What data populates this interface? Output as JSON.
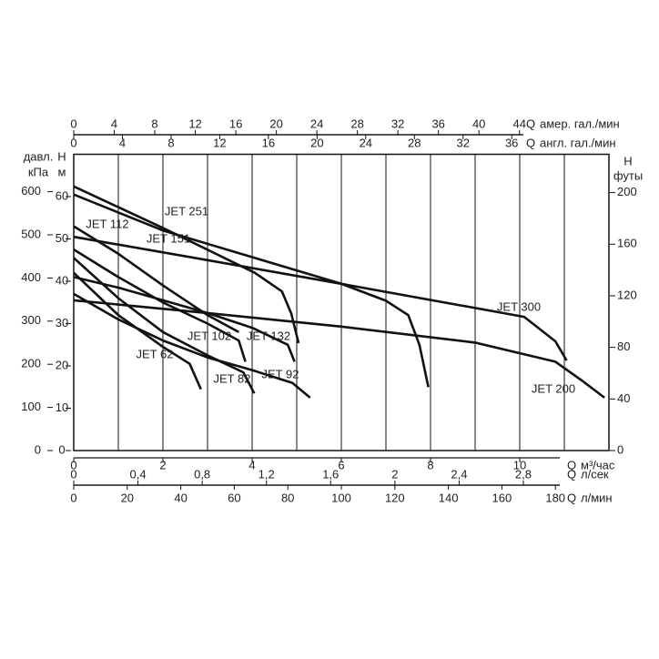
{
  "chart_data": {
    "type": "line",
    "axes": [
      {
        "side": "bottom",
        "title": "Q",
        "unit": "м³/час",
        "lim": [
          0,
          12
        ],
        "ticks": [
          0,
          2,
          4,
          6,
          8,
          10
        ]
      },
      {
        "side": "bottom",
        "title": "Q",
        "unit": "л/сек",
        "lim": [
          0,
          3.333
        ],
        "ticks": [
          0,
          {
            "value": 0.4,
            "label": "0,4"
          },
          {
            "value": 0.8,
            "label": "0,8"
          },
          {
            "value": 1.2,
            "label": "1,2"
          },
          {
            "value": 1.6,
            "label": "1,6"
          },
          2,
          {
            "value": 2.4,
            "label": "2,4"
          },
          {
            "value": 2.8,
            "label": "2,8"
          }
        ]
      },
      {
        "side": "bottom",
        "title": "Q",
        "unit": "л/мин",
        "lim": [
          0,
          200
        ],
        "ticks": [
          0,
          20,
          40,
          60,
          80,
          100,
          120,
          140,
          160,
          180
        ]
      },
      {
        "side": "top",
        "title": "Q",
        "unit": "амер. гал./мин",
        "lim": [
          0,
          52.83
        ],
        "ticks": [
          0,
          4,
          8,
          12,
          16,
          20,
          24,
          28,
          32,
          36,
          40,
          44
        ]
      },
      {
        "side": "top",
        "title": "Q",
        "unit": "англ. гал./мин",
        "lim": [
          0,
          43.99
        ],
        "ticks": [
          0,
          4,
          8,
          12,
          16,
          20,
          24,
          28,
          32,
          36
        ]
      },
      {
        "side": "left",
        "title": "H",
        "unit": "м",
        "lim": [
          0,
          70
        ],
        "ticks": [
          0,
          10,
          20,
          30,
          40,
          50,
          60
        ]
      },
      {
        "side": "left",
        "title": "давл.",
        "unit": "кПа",
        "lim": [
          0,
          686.7
        ],
        "ticks": [
          0,
          100,
          200,
          300,
          400,
          500,
          600
        ]
      },
      {
        "side": "right",
        "title": "H",
        "unit": "футы",
        "lim": [
          0,
          229.7
        ],
        "ticks": [
          0,
          40,
          80,
          120,
          160,
          200
        ]
      }
    ],
    "grid_x": [
      1,
      2,
      3,
      4,
      5,
      6,
      7,
      8,
      9,
      10,
      11
    ],
    "series": [
      {
        "name": "JET 251",
        "color": "#111111",
        "x": [
          0,
          2,
          4.06,
          4.67,
          4.88,
          5.04
        ],
        "values": [
          62.4,
          52.6,
          42,
          37.6,
          32.3,
          25.4
        ]
      },
      {
        "name": "JET 300",
        "color": "#111111",
        "x": [
          0,
          2,
          6,
          10.1,
          10.8,
          11.05
        ],
        "values": [
          60.5,
          52,
          39.4,
          31.6,
          25.8,
          21.3
        ]
      },
      {
        "name": "JET 151",
        "color": "#111111",
        "x": [
          0,
          3,
          6,
          7,
          7.5,
          7.75,
          7.95
        ],
        "values": [
          50.5,
          45,
          39.4,
          35.4,
          32,
          25,
          15
        ]
      },
      {
        "name": "JET 112",
        "color": "#111111",
        "x": [
          0,
          1,
          2,
          3,
          3.7
        ],
        "values": [
          53,
          46.5,
          39,
          32,
          28
        ]
      },
      {
        "name": "JET 102",
        "color": "#111111",
        "x": [
          0,
          1,
          2,
          3,
          3.7,
          3.85
        ],
        "values": [
          47.5,
          41,
          35,
          30,
          26,
          21
        ]
      },
      {
        "name": "JET 132",
        "color": "#111111",
        "x": [
          0,
          1,
          2,
          3,
          4,
          4.8,
          4.95
        ],
        "values": [
          41,
          38.5,
          35.5,
          32.5,
          29,
          25,
          21
        ]
      },
      {
        "name": "JET 62",
        "color": "#111111",
        "x": [
          0,
          1,
          2,
          2.6,
          2.85
        ],
        "values": [
          42,
          32,
          24.5,
          20.5,
          14.5
        ]
      },
      {
        "name": "JET 82",
        "color": "#111111",
        "x": [
          0,
          1,
          2,
          3,
          3.8,
          4.05
        ],
        "values": [
          45.5,
          36,
          28,
          22.5,
          18.5,
          13.5
        ]
      },
      {
        "name": "JET 92",
        "color": "#111111",
        "x": [
          0,
          1,
          2,
          3,
          4,
          4.9,
          5.3
        ],
        "values": [
          37,
          31,
          26,
          22,
          19,
          16,
          12.5
        ]
      },
      {
        "name": "JET 200",
        "color": "#111111",
        "x": [
          0,
          3,
          6,
          9,
          10.8,
          11.4,
          11.9
        ],
        "values": [
          35.5,
          32.5,
          29.3,
          25.5,
          21,
          16.5,
          12.5
        ]
      }
    ]
  }
}
